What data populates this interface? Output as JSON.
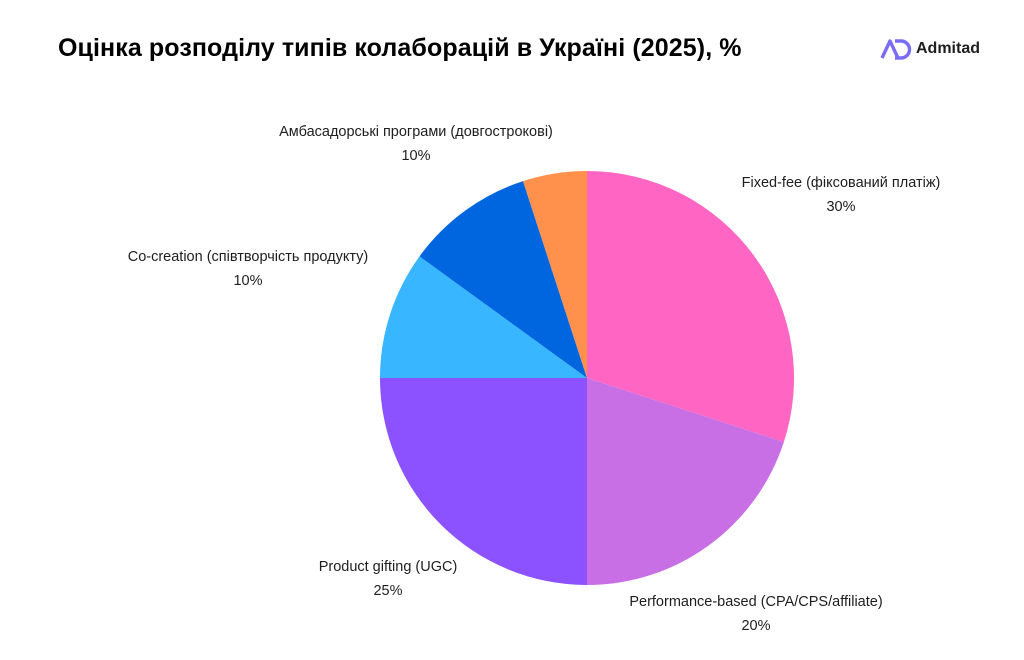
{
  "title": "Оцінка розподілу типів колаборацій в Україні (2025), %",
  "brand": {
    "name": "Admitad",
    "icon": "admitad-logo-icon",
    "color": "#7b6cf6"
  },
  "chart_data": {
    "type": "pie",
    "title": "Оцінка розподілу типів колаборацій в Україні (2025), %",
    "start_angle_deg": 0,
    "direction": "clockwise",
    "slices": [
      {
        "label": "Fixed-fee (фіксований платіж)",
        "value": 30,
        "display": "30%",
        "color": "#ff66c4"
      },
      {
        "label": "Performance-based (CPA/CPS/affiliate)",
        "value": 20,
        "display": "20%",
        "color": "#c96fe6"
      },
      {
        "label": "Product gifting (UGC)",
        "value": 25,
        "display": "25%",
        "color": "#8c52ff"
      },
      {
        "label": "Co-creation (співтворчість продукту)",
        "value": 10,
        "display": "10%",
        "color": "#38b6ff"
      },
      {
        "label": "Амбасадорські програми (довгострокові)",
        "value": 10,
        "display": "10%",
        "color": "#0066e0"
      },
      {
        "label": "",
        "value": 5,
        "display": "",
        "color": "#ff914d"
      }
    ]
  }
}
